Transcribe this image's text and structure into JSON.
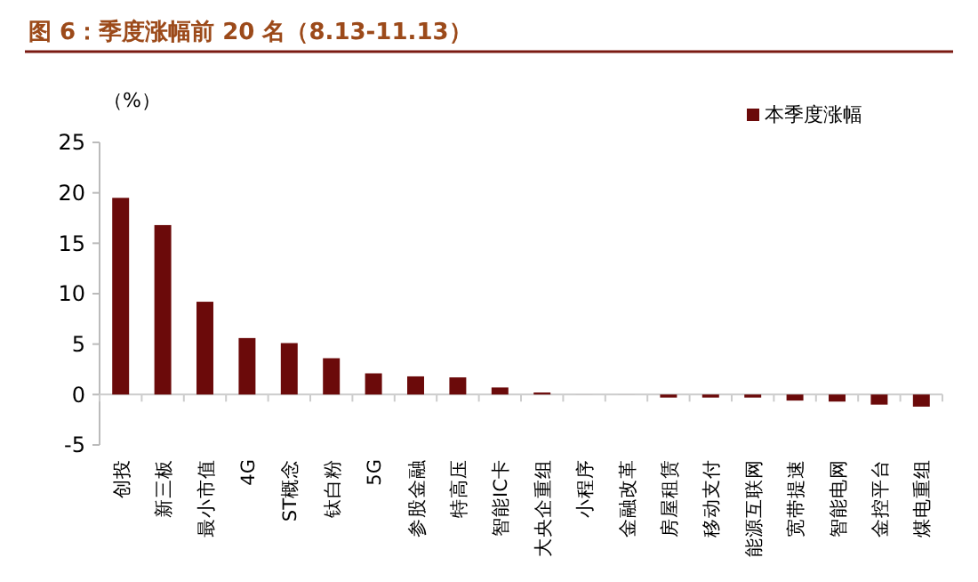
{
  "chart_data": {
    "type": "bar",
    "title": "图 6：季度涨幅前 20 名（8.13-11.13）",
    "ylabel": "（%）",
    "categories": [
      "创投",
      "新三板",
      "最小市值",
      "4G",
      "ST概念",
      "钛白粉",
      "5G",
      "参股金融",
      "特高压",
      "智能IC卡",
      "大央企重组",
      "小程序",
      "金融改革",
      "房屋租赁",
      "移动支付",
      "能源互联网",
      "宽带提速",
      "智能电网",
      "金控平台",
      "煤电重组"
    ],
    "series": [
      {
        "name": "本季度涨幅",
        "color": "#6b0a0a",
        "values": [
          19.5,
          16.8,
          9.2,
          5.6,
          5.1,
          3.6,
          2.1,
          1.8,
          1.7,
          0.7,
          0.2,
          0,
          0,
          -0.3,
          -0.3,
          -0.3,
          -0.6,
          -0.7,
          -1.0,
          -1.2
        ]
      }
    ],
    "ylim": [
      -5,
      25
    ],
    "yticks": [
      -5,
      0,
      5,
      10,
      15,
      20,
      25
    ],
    "legend": "top right"
  }
}
